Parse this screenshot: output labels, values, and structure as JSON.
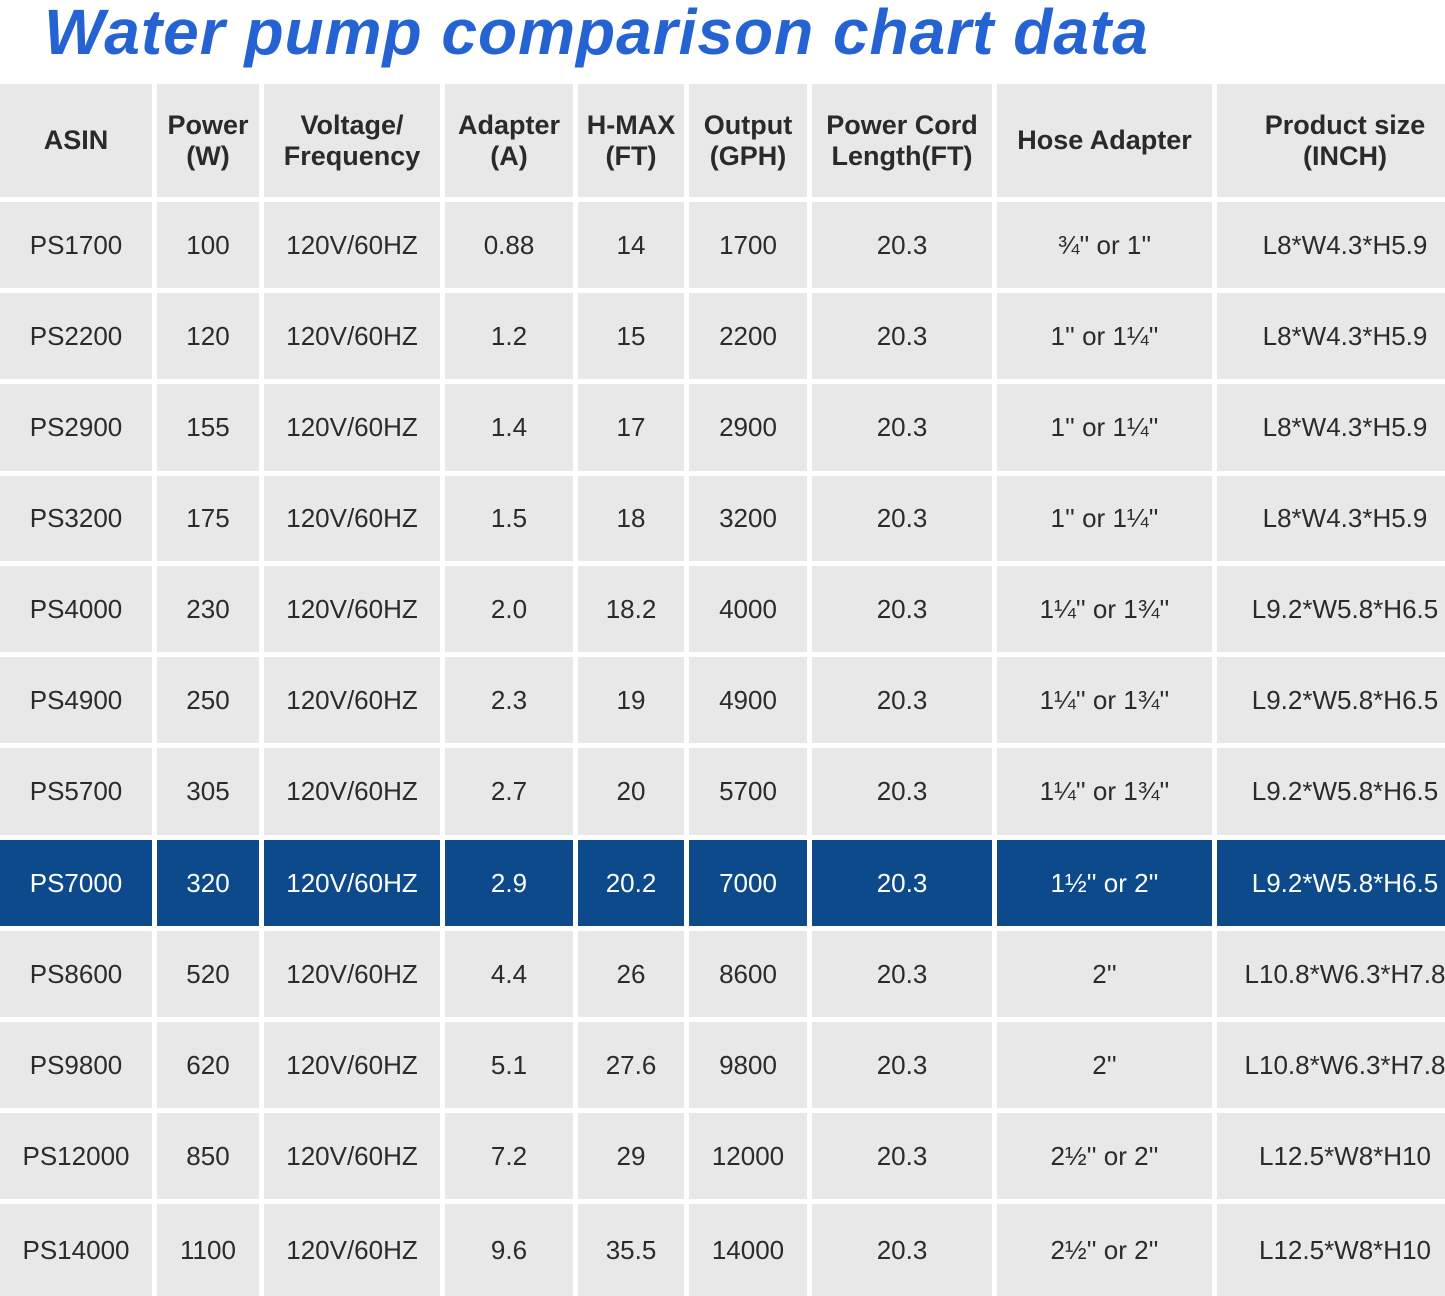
{
  "title": "Water pump comparison chart data",
  "colors": {
    "title": "#2563d3",
    "cell_bg": "#e9e8e8",
    "highlight_bg": "#0d4a8c",
    "highlight_text": "#ffffff"
  },
  "headers": [
    "ASIN",
    "Power\n(W)",
    "Voltage/\nFrequency",
    "Adapter\n(A)",
    "H-MAX\n(FT)",
    "Output\n(GPH)",
    "Power Cord\nLength(FT)",
    "Hose Adapter",
    "Product size\n(INCH)"
  ],
  "highlighted_row": "PS7000",
  "rows": [
    [
      "PS1700",
      "100",
      "120V/60HZ",
      "0.88",
      "14",
      "1700",
      "20.3",
      "¾'' or 1''",
      "L8*W4.3*H5.9"
    ],
    [
      "PS2200",
      "120",
      "120V/60HZ",
      "1.2",
      "15",
      "2200",
      "20.3",
      "1'' or 1¼''",
      "L8*W4.3*H5.9"
    ],
    [
      "PS2900",
      "155",
      "120V/60HZ",
      "1.4",
      "17",
      "2900",
      "20.3",
      "1'' or 1¼''",
      "L8*W4.3*H5.9"
    ],
    [
      "PS3200",
      "175",
      "120V/60HZ",
      "1.5",
      "18",
      "3200",
      "20.3",
      "1'' or 1¼''",
      "L8*W4.3*H5.9"
    ],
    [
      "PS4000",
      "230",
      "120V/60HZ",
      "2.0",
      "18.2",
      "4000",
      "20.3",
      "1¼'' or 1¾''",
      "L9.2*W5.8*H6.5"
    ],
    [
      "PS4900",
      "250",
      "120V/60HZ",
      "2.3",
      "19",
      "4900",
      "20.3",
      "1¼'' or 1¾''",
      "L9.2*W5.8*H6.5"
    ],
    [
      "PS5700",
      "305",
      "120V/60HZ",
      "2.7",
      "20",
      "5700",
      "20.3",
      "1¼'' or 1¾''",
      "L9.2*W5.8*H6.5"
    ],
    [
      "PS7000",
      "320",
      "120V/60HZ",
      "2.9",
      "20.2",
      "7000",
      "20.3",
      "1½'' or 2''",
      "L9.2*W5.8*H6.5"
    ],
    [
      "PS8600",
      "520",
      "120V/60HZ",
      "4.4",
      "26",
      "8600",
      "20.3",
      "2''",
      "L10.8*W6.3*H7.8"
    ],
    [
      "PS9800",
      "620",
      "120V/60HZ",
      "5.1",
      "27.6",
      "9800",
      "20.3",
      "2''",
      "L10.8*W6.3*H7.8"
    ],
    [
      "PS12000",
      "850",
      "120V/60HZ",
      "7.2",
      "29",
      "12000",
      "20.3",
      "2½'' or 2''",
      "L12.5*W8*H10"
    ],
    [
      "PS14000",
      "1100",
      "120V/60HZ",
      "9.6",
      "35.5",
      "14000",
      "20.3",
      "2½'' or 2''",
      "L12.5*W8*H10"
    ]
  ]
}
